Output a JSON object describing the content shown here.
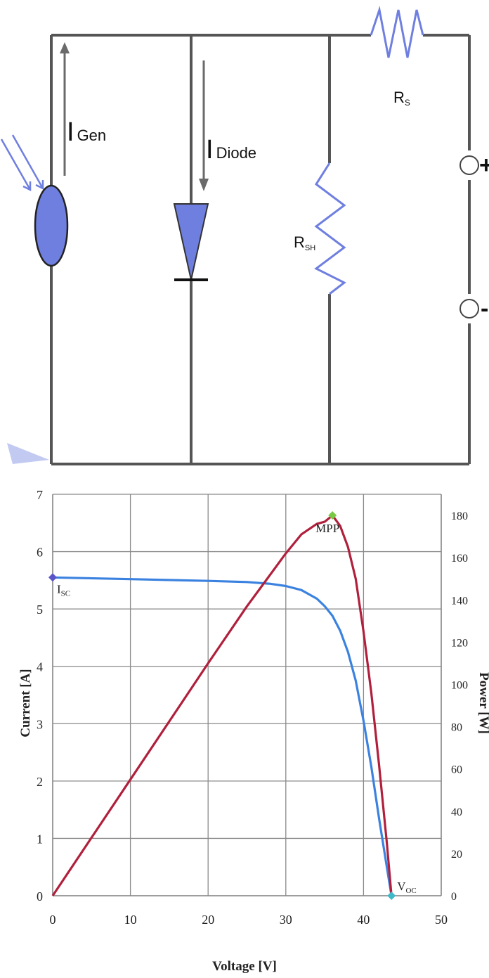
{
  "circuit": {
    "labels": {
      "i_gen_main": "I",
      "i_gen_sub": "Gen",
      "i_diode_main": "I",
      "i_diode_sub": "Diode",
      "rs_main": "R",
      "rs_sub": "S",
      "rsh_main": "R",
      "rsh_sub": "SH",
      "plus": "+",
      "minus": "-"
    },
    "colors": {
      "wire": "#555555",
      "component": "#6f7fe0",
      "arrow": "#6a6a6a"
    }
  },
  "chart_data": {
    "type": "line",
    "xlabel": "Voltage [V]",
    "ylabel": "Current [A]",
    "y2label": "Power [W]",
    "xlim": [
      0,
      50
    ],
    "ylim": [
      0,
      7
    ],
    "y2lim": [
      0,
      190
    ],
    "xticks": [
      0,
      10,
      20,
      30,
      40,
      50
    ],
    "yticks": [
      0,
      1,
      2,
      3,
      4,
      5,
      6,
      7
    ],
    "y2ticks": [
      0,
      20,
      40,
      60,
      80,
      100,
      120,
      140,
      160,
      180
    ],
    "grid": true,
    "series": [
      {
        "axis": "left",
        "color": "#3b82e0",
        "x": [
          0,
          10,
          20,
          25,
          28,
          30,
          32,
          34,
          35,
          36,
          37,
          38,
          39,
          40,
          41,
          42,
          43,
          43.6
        ],
        "y": [
          5.55,
          5.52,
          5.49,
          5.47,
          5.44,
          5.4,
          5.33,
          5.18,
          5.05,
          4.88,
          4.62,
          4.25,
          3.75,
          3.05,
          2.25,
          1.35,
          0.5,
          0.0
        ]
      },
      {
        "axis": "right",
        "color": "#b0203c",
        "x": [
          0,
          10,
          20,
          25,
          28,
          30,
          32,
          34,
          35,
          36,
          37,
          38,
          39,
          40,
          41,
          42,
          43,
          43.6
        ],
        "y": [
          0,
          55,
          110,
          137,
          152,
          162,
          171,
          176,
          177,
          180,
          175,
          165,
          150,
          125,
          96,
          62,
          25,
          0
        ]
      }
    ],
    "annotations": [
      {
        "text_main": "I",
        "text_sub": "SC",
        "x": 0,
        "y": 5.55,
        "axis": "left",
        "color": "#5a55c8"
      },
      {
        "text_main": "MPP",
        "text_sub": "",
        "x": 36,
        "y": 180,
        "axis": "right",
        "color": "#7ac943"
      },
      {
        "text_main": "V",
        "text_sub": "OC",
        "x": 43.6,
        "y": 0,
        "axis": "left",
        "color": "#3fb8c8"
      }
    ]
  }
}
